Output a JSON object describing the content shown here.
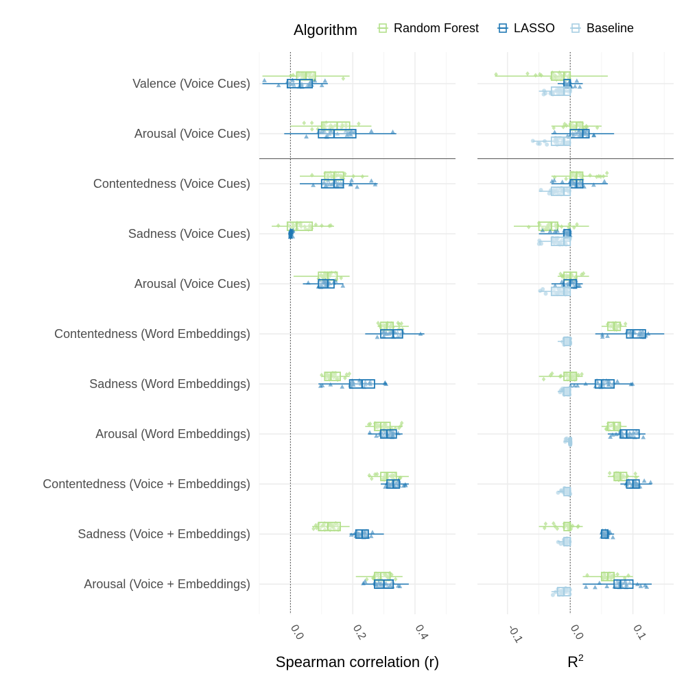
{
  "chart_data": {
    "type": "boxplot",
    "legend": {
      "title": "Algorithm",
      "placement": "top",
      "items": [
        {
          "name": "Random Forest",
          "color": "#b2df8a"
        },
        {
          "name": "LASSO",
          "color": "#1f78b4"
        },
        {
          "name": "Baseline",
          "color": "#a6cee3"
        }
      ]
    },
    "categories": [
      "Valence (Voice Cues)",
      "Arousal (Voice Cues)",
      "Contentedness (Voice Cues)",
      "Sadness (Voice Cues)",
      "Arousal (Voice Cues)",
      "Contentedness (Word Embeddings)",
      "Sadness (Word Embeddings)",
      "Arousal (Word Embeddings)",
      "Contentedness (Voice + Embeddings)",
      "Sadness (Voice + Embeddings)",
      "Arousal (Voice + Embeddings)"
    ],
    "separator_after_category": 1,
    "panels": [
      {
        "id": "spearman",
        "xlabel": "Spearman correlation (r)",
        "xlim": [
          -0.1,
          0.53
        ],
        "ticks": [
          0.0,
          0.2,
          0.4
        ],
        "tick_labels": [
          "0.0",
          "0.2",
          "0.4"
        ],
        "reference_line": 0,
        "series": [
          {
            "name": "Random Forest",
            "boxes": [
              [
                -0.09,
                0.02,
                0.05,
                0.08,
                0.19
              ],
              [
                0.0,
                0.1,
                0.15,
                0.19,
                0.26
              ],
              [
                0.03,
                0.11,
                0.14,
                0.17,
                0.25
              ],
              [
                -0.06,
                -0.01,
                0.02,
                0.07,
                0.14
              ],
              [
                0.01,
                0.09,
                0.12,
                0.15,
                0.19
              ],
              [
                0.28,
                0.29,
                0.31,
                0.33,
                0.38
              ],
              [
                0.1,
                0.11,
                0.13,
                0.16,
                0.19
              ],
              [
                0.24,
                0.27,
                0.29,
                0.32,
                0.36
              ],
              [
                0.25,
                0.29,
                0.31,
                0.34,
                0.38
              ],
              [
                0.07,
                0.09,
                0.12,
                0.16,
                0.19
              ],
              [
                0.21,
                0.27,
                0.29,
                0.32,
                0.36
              ]
            ]
          },
          {
            "name": "LASSO",
            "boxes": [
              [
                -0.09,
                -0.01,
                0.03,
                0.07,
                0.12
              ],
              [
                -0.02,
                0.09,
                0.14,
                0.21,
                0.34
              ],
              [
                0.03,
                0.1,
                0.14,
                0.17,
                0.28
              ],
              [
                0.0,
                0.0,
                0.0,
                0.0,
                0.01
              ],
              [
                0.04,
                0.09,
                0.12,
                0.14,
                0.17
              ],
              [
                0.24,
                0.29,
                0.33,
                0.36,
                0.43
              ],
              [
                0.09,
                0.19,
                0.23,
                0.27,
                0.31
              ],
              [
                0.25,
                0.29,
                0.31,
                0.34,
                0.36
              ],
              [
                0.29,
                0.31,
                0.33,
                0.35,
                0.38
              ],
              [
                0.19,
                0.21,
                0.23,
                0.25,
                0.3
              ],
              [
                0.23,
                0.27,
                0.3,
                0.33,
                0.38
              ]
            ]
          }
        ]
      },
      {
        "id": "r2",
        "xlabel": "R",
        "xlabel_superscript": "2",
        "xlim": [
          -0.148,
          0.165
        ],
        "ticks": [
          -0.1,
          0.0,
          0.1
        ],
        "tick_labels": [
          "-0.1",
          "0.0",
          "0.1"
        ],
        "reference_line": 0,
        "series": [
          {
            "name": "Random Forest",
            "boxes": [
              [
                -0.12,
                -0.03,
                -0.01,
                0.0,
                0.06
              ],
              [
                -0.03,
                0.0,
                0.01,
                0.02,
                0.05
              ],
              [
                -0.03,
                0.0,
                0.01,
                0.02,
                0.06
              ],
              [
                -0.09,
                -0.05,
                -0.03,
                -0.02,
                0.03
              ],
              [
                -0.02,
                -0.01,
                0.0,
                0.01,
                0.03
              ],
              [
                0.05,
                0.06,
                0.07,
                0.08,
                0.09
              ],
              [
                -0.05,
                -0.01,
                0.0,
                0.01,
                0.02
              ],
              [
                0.05,
                0.06,
                0.07,
                0.08,
                0.09
              ],
              [
                0.06,
                0.07,
                0.08,
                0.09,
                0.11
              ],
              [
                -0.05,
                -0.01,
                0.0,
                0.0,
                0.02
              ],
              [
                0.02,
                0.05,
                0.06,
                0.07,
                0.1
              ]
            ]
          },
          {
            "name": "LASSO",
            "boxes": [
              [
                -0.02,
                -0.01,
                0.0,
                0.0,
                0.02
              ],
              [
                -0.03,
                0.0,
                0.02,
                0.03,
                0.07
              ],
              [
                -0.03,
                0.0,
                0.01,
                0.02,
                0.06
              ],
              [
                -0.05,
                -0.01,
                0.0,
                0.0,
                0.0
              ],
              [
                -0.03,
                -0.01,
                0.0,
                0.01,
                0.02
              ],
              [
                0.04,
                0.09,
                0.1,
                0.12,
                0.15
              ],
              [
                0.0,
                0.04,
                0.05,
                0.07,
                0.1
              ],
              [
                0.06,
                0.08,
                0.09,
                0.11,
                0.12
              ],
              [
                0.08,
                0.09,
                0.1,
                0.11,
                0.13
              ],
              [
                0.05,
                0.05,
                0.06,
                0.06,
                0.07
              ],
              [
                0.02,
                0.07,
                0.08,
                0.1,
                0.13
              ]
            ]
          },
          {
            "name": "Baseline",
            "boxes": [
              [
                -0.05,
                -0.03,
                -0.01,
                0.0,
                0.0
              ],
              [
                -0.06,
                -0.03,
                -0.01,
                0.0,
                0.0
              ],
              [
                -0.05,
                -0.03,
                -0.01,
                0.0,
                0.0
              ],
              [
                -0.05,
                -0.03,
                -0.01,
                0.0,
                0.0
              ],
              [
                -0.05,
                -0.03,
                -0.01,
                0.0,
                0.0
              ],
              [
                -0.02,
                -0.01,
                0.0,
                0.0,
                0.0
              ],
              [
                -0.02,
                -0.01,
                0.0,
                0.0,
                0.0
              ],
              [
                -0.01,
                0.0,
                0.0,
                0.0,
                0.0
              ],
              [
                -0.02,
                -0.01,
                0.0,
                0.0,
                0.0
              ],
              [
                -0.02,
                -0.01,
                0.0,
                0.0,
                0.0
              ],
              [
                -0.03,
                -0.02,
                -0.01,
                0.0,
                0.0
              ]
            ]
          }
        ]
      }
    ]
  }
}
